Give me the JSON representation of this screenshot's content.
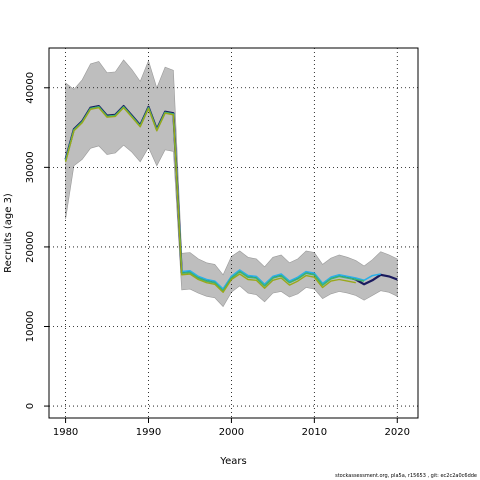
{
  "chart_data": {
    "type": "line",
    "title": "",
    "xlabel": "Years",
    "ylabel": "Recruits (age 3)",
    "xlim": [
      1978,
      2022.5
    ],
    "ylim": [
      -1500,
      45000
    ],
    "x_ticks": [
      1980,
      1990,
      2000,
      2010,
      2020
    ],
    "y_ticks": [
      0,
      10000,
      20000,
      30000,
      40000
    ],
    "grid": "dotted",
    "legend": "none",
    "band": {
      "color": "#bebebe",
      "x": [
        1980,
        1981,
        1982,
        1983,
        1984,
        1985,
        1986,
        1987,
        1988,
        1989,
        1990,
        1991,
        1992,
        1993,
        1994,
        1995,
        1996,
        1997,
        1998,
        1999,
        2000,
        2001,
        2002,
        2003,
        2004,
        2005,
        2006,
        2007,
        2008,
        2009,
        2010,
        2011,
        2012,
        2013,
        2014,
        2015,
        2016,
        2017,
        2018,
        2019,
        2020
      ],
      "upper": [
        40600,
        39800,
        41000,
        43000,
        43300,
        41900,
        42000,
        43500,
        42300,
        40800,
        43400,
        40000,
        42600,
        42200,
        19200,
        19300,
        18500,
        18000,
        17800,
        16500,
        18800,
        19500,
        18700,
        18500,
        17500,
        18700,
        19000,
        18000,
        18500,
        19500,
        19300,
        17800,
        18600,
        19000,
        18700,
        18300,
        17600,
        18400,
        19400,
        19000,
        18500
      ],
      "lower": [
        23500,
        30200,
        31000,
        32400,
        32700,
        31600,
        31800,
        32800,
        31900,
        30700,
        32500,
        30200,
        32200,
        32000,
        14600,
        14700,
        14200,
        13800,
        13600,
        12500,
        14300,
        15100,
        14200,
        14000,
        13100,
        14200,
        14400,
        13700,
        14100,
        14900,
        14700,
        13500,
        14100,
        14400,
        14200,
        13900,
        13300,
        13900,
        14500,
        14300,
        13800
      ]
    },
    "series": [
      {
        "color": "#1a1a5e",
        "width": 2.2,
        "x": [
          1980,
          1981,
          1982,
          1983,
          1984,
          1985,
          1986,
          1987,
          1988,
          1989,
          1990,
          1991,
          1992,
          1993,
          1994,
          1995,
          1996,
          1997,
          1998,
          1999,
          2000,
          2001,
          2002,
          2003,
          2004,
          2005,
          2006,
          2007,
          2008,
          2009,
          2010,
          2011,
          2012,
          2013,
          2014,
          2015,
          2016,
          2017,
          2018,
          2019,
          2020
        ],
        "values": [
          31000,
          34800,
          35800,
          37500,
          37700,
          36500,
          36600,
          37700,
          36500,
          35300,
          37600,
          34800,
          37000,
          36800,
          16800,
          16900,
          16200,
          15800,
          15600,
          14600,
          16200,
          17000,
          16300,
          16200,
          15200,
          16200,
          16500,
          15600,
          16100,
          16800,
          16600,
          15300,
          16100,
          16400,
          16200,
          15900,
          15300,
          15800,
          16500,
          16300,
          15900
        ]
      },
      {
        "color": "#2ab0e8",
        "width": 1.6,
        "x": [
          1980,
          1981,
          1982,
          1983,
          1984,
          1985,
          1986,
          1987,
          1988,
          1989,
          1990,
          1991,
          1992,
          1993,
          1994,
          1995,
          1996,
          1997,
          1998,
          1999,
          2000,
          2001,
          2002,
          2003,
          2004,
          2005,
          2006,
          2007,
          2008,
          2009,
          2010,
          2011,
          2012,
          2013,
          2014,
          2015,
          2016,
          2017,
          2018
        ],
        "values": [
          30900,
          34700,
          35700,
          37400,
          37600,
          36400,
          36500,
          37600,
          36400,
          35200,
          37500,
          34700,
          36900,
          36700,
          16900,
          17000,
          16300,
          15900,
          15700,
          14700,
          16300,
          17100,
          16400,
          16300,
          15300,
          16300,
          16600,
          15700,
          16200,
          16900,
          16700,
          15400,
          16200,
          16500,
          16300,
          16100,
          15800,
          16400,
          16600
        ]
      },
      {
        "color": "#3cb371",
        "width": 1.6,
        "x": [
          1980,
          1981,
          1982,
          1983,
          1984,
          1985,
          1986,
          1987,
          1988,
          1989,
          1990,
          1991,
          1992,
          1993,
          1994,
          1995,
          1996,
          1997,
          1998,
          1999,
          2000,
          2001,
          2002,
          2003,
          2004,
          2005,
          2006,
          2007,
          2008,
          2009,
          2010,
          2011,
          2012,
          2013,
          2014,
          2015,
          2016
        ],
        "values": [
          30800,
          34700,
          35700,
          37400,
          37600,
          36400,
          36500,
          37600,
          36400,
          35200,
          37500,
          34700,
          36900,
          36700,
          16700,
          16800,
          16100,
          15700,
          15500,
          14500,
          16100,
          16900,
          16200,
          16100,
          15100,
          16100,
          16400,
          15500,
          16000,
          16700,
          16500,
          15200,
          16000,
          16300,
          16100,
          15900,
          15700
        ]
      },
      {
        "color": "#9aa81a",
        "width": 1.4,
        "x": [
          1980,
          1981,
          1982,
          1983,
          1984,
          1985,
          1986,
          1987,
          1988,
          1989,
          1990,
          1991,
          1992,
          1993,
          1994,
          1995,
          1996,
          1997,
          1998,
          1999,
          2000,
          2001,
          2002,
          2003,
          2004,
          2005,
          2006,
          2007,
          2008,
          2009,
          2010,
          2011,
          2012,
          2013,
          2014,
          2015
        ],
        "values": [
          30700,
          34600,
          35600,
          37300,
          37500,
          36300,
          36400,
          37500,
          36300,
          35100,
          37400,
          34600,
          36800,
          36600,
          16500,
          16600,
          15900,
          15500,
          15300,
          14300,
          15900,
          16600,
          15900,
          15800,
          14800,
          15800,
          16100,
          15200,
          15700,
          16400,
          16200,
          14900,
          15700,
          15900,
          15700,
          15500
        ]
      }
    ]
  },
  "footer": "stockassessment.org, pla5a, r15653 , git: ec2c2a0c6dde"
}
